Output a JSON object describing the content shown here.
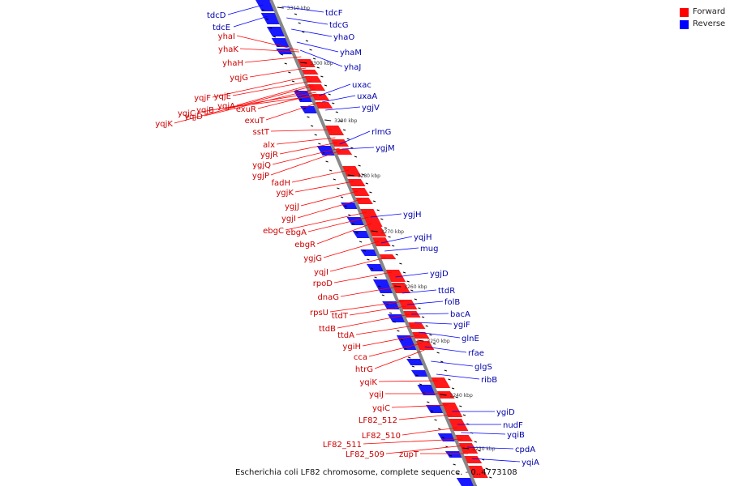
{
  "caption": "Escherichia coli LF82 chromosome, complete sequence. - 0..4773108",
  "legend": [
    {
      "label": "Forward",
      "color": "#ff0000"
    },
    {
      "label": "Reverse",
      "color": "#0000ff"
    }
  ],
  "colors": {
    "forward": "#ff0000",
    "reverse": "#0000ff",
    "axis": "#888888"
  },
  "ticks": [
    "3310 kbp",
    "3300 kbp",
    "3290 kbp",
    "3280 kbp",
    "3270 kbp",
    "3260 kbp",
    "3250 kbp",
    "3240 kbp",
    "3230 kbp"
  ],
  "forward_genes": [
    "yhaI",
    "yhaK",
    "yhaH",
    "yqjG",
    "yqjF",
    "yqjE",
    "yqjA",
    "exuR",
    "exuT",
    "yqjK",
    "yqjD",
    "yqjC",
    "yqjB",
    "sstT",
    "alx",
    "ygjR",
    "ygjQ",
    "ygjP",
    "fadH",
    "ygjK",
    "ygjJ",
    "ygjI",
    "ebgC",
    "ebgA",
    "ebgR",
    "ygjG",
    "yqjI",
    "rpoD",
    "dnaG",
    "rpsU",
    "ttdT",
    "ttdB",
    "ttdA",
    "ygiH",
    "cca",
    "htrG",
    "yqiK",
    "yqiJ",
    "yqiC",
    "LF82_512",
    "LF82_510",
    "LF82_511",
    "LF82_509",
    "zupT"
  ],
  "reverse_genes": [
    "tdcD",
    "tdcE",
    "tdcF",
    "tdcG",
    "yhaO",
    "yhaM",
    "yhaJ",
    "uxac",
    "uxaA",
    "ygjV",
    "rlmG",
    "ygjM",
    "ygjH",
    "yqjH",
    "mug",
    "ygjD",
    "ttdR",
    "folB",
    "bacA",
    "ygiF",
    "glnE",
    "rfae",
    "glgS",
    "ribB",
    "ygiD",
    "nudF",
    "yqiB",
    "cpdA",
    "yqiA"
  ]
}
